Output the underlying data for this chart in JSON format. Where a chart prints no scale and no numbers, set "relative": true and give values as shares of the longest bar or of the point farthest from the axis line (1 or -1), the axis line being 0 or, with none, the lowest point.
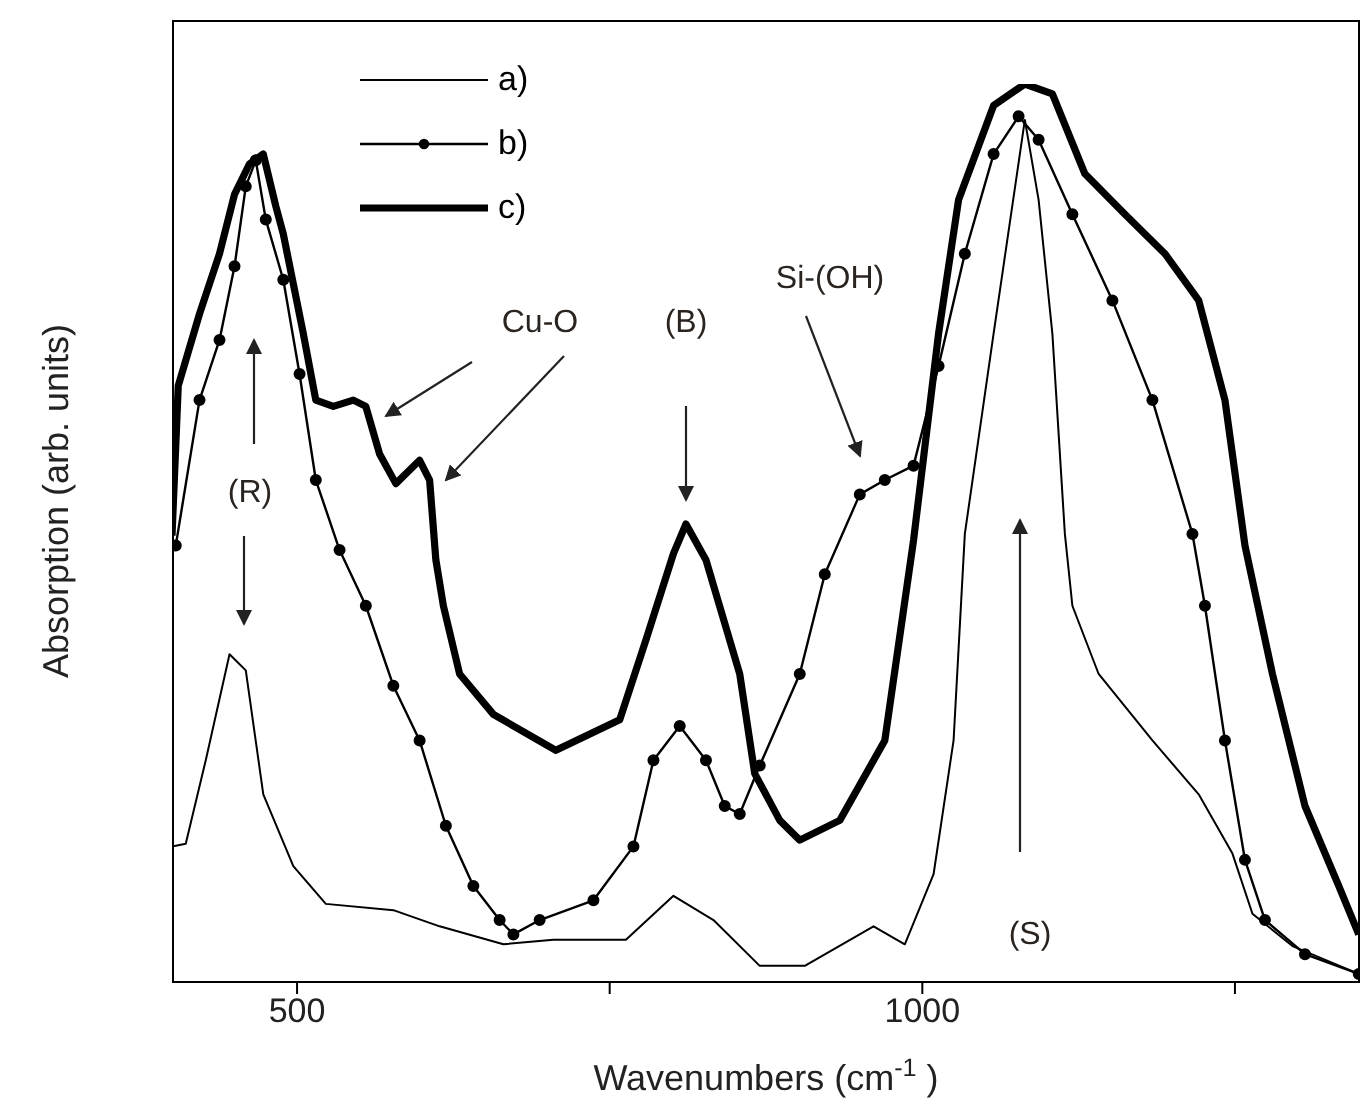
{
  "chart_data": {
    "type": "line",
    "relative": true,
    "xlabel": "Wavenumbers (cm$^{-1}$)",
    "ylabel": "Absorption (arb. units)",
    "xlim": [
      400,
      1350
    ],
    "xticks": [
      500,
      {
        "value": 750,
        "label": null
      },
      1000,
      {
        "value": 1250,
        "label": null
      }
    ],
    "legend": "top left",
    "line_style": "solid",
    "annotations": [
      "Cu-O",
      "(B)",
      "Si-(OH)",
      "(R)",
      "(S)"
    ],
    "series": [
      {
        "name": "a)",
        "color": "#000000",
        "marker": "none",
        "x": [
          400,
          411,
          427,
          446,
          459,
          473,
          497,
          523,
          577,
          614,
          665,
          705,
          763,
          801,
          833,
          870,
          906,
          961,
          986,
          1009,
          1025,
          1034,
          1057,
          1082,
          1093,
          1104,
          1114,
          1120,
          1141,
          1184,
          1221,
          1248,
          1264,
          1296,
          1349
        ],
        "values": [
          0.151,
          0.154,
          0.247,
          0.365,
          0.347,
          0.209,
          0.129,
          0.087,
          0.08,
          0.062,
          0.042,
          0.047,
          0.047,
          0.096,
          0.069,
          0.018,
          0.018,
          0.062,
          0.042,
          0.12,
          0.269,
          0.499,
          0.722,
          0.96,
          0.871,
          0.722,
          0.499,
          0.419,
          0.343,
          0.269,
          0.209,
          0.143,
          0.076,
          0.04,
          0.009
        ]
      },
      {
        "name": "b)",
        "color": "#000000",
        "marker": "circle",
        "x": [
          403,
          422,
          438,
          450,
          459,
          467,
          475,
          489,
          502,
          515,
          534,
          555,
          577,
          598,
          619,
          641,
          662,
          673,
          694,
          737,
          769,
          785,
          806,
          827,
          842,
          854,
          870,
          902,
          922,
          950,
          970,
          993,
          1013,
          1034,
          1057,
          1077,
          1093,
          1120,
          1152,
          1184,
          1216,
          1226,
          1242,
          1258,
          1274,
          1306,
          1349
        ],
        "values": [
          0.486,
          0.648,
          0.715,
          0.797,
          0.886,
          0.915,
          0.849,
          0.782,
          0.677,
          0.559,
          0.481,
          0.419,
          0.33,
          0.269,
          0.174,
          0.107,
          0.069,
          0.053,
          0.069,
          0.091,
          0.151,
          0.247,
          0.285,
          0.247,
          0.196,
          0.187,
          0.241,
          0.343,
          0.454,
          0.543,
          0.559,
          0.575,
          0.686,
          0.811,
          0.922,
          0.964,
          0.938,
          0.855,
          0.759,
          0.648,
          0.499,
          0.419,
          0.269,
          0.136,
          0.069,
          0.031,
          0.009
        ]
      },
      {
        "name": "c)",
        "color": "#000000",
        "marker": "none",
        "x": [
          400,
          405,
          422,
          438,
          450,
          462,
          473,
          483,
          489,
          505,
          515,
          529,
          545,
          555,
          566,
          579,
          598,
          606,
          611,
          617,
          630,
          657,
          707,
          758,
          779,
          801,
          811,
          827,
          854,
          866,
          886,
          902,
          934,
          970,
          993,
          1013,
          1029,
          1057,
          1082,
          1104,
          1130,
          1162,
          1194,
          1221,
          1242,
          1258,
          1280,
          1306,
          1333,
          1349
        ],
        "values": [
          0.497,
          0.664,
          0.744,
          0.811,
          0.877,
          0.911,
          0.922,
          0.864,
          0.833,
          0.722,
          0.648,
          0.641,
          0.648,
          0.641,
          0.588,
          0.555,
          0.581,
          0.559,
          0.47,
          0.419,
          0.343,
          0.298,
          0.258,
          0.292,
          0.381,
          0.477,
          0.51,
          0.47,
          0.343,
          0.232,
          0.18,
          0.158,
          0.18,
          0.269,
          0.492,
          0.722,
          0.871,
          0.976,
          1,
          0.989,
          0.9,
          0.855,
          0.811,
          0.759,
          0.648,
          0.486,
          0.343,
          0.196,
          0.107,
          0.053
        ]
      }
    ]
  }
}
